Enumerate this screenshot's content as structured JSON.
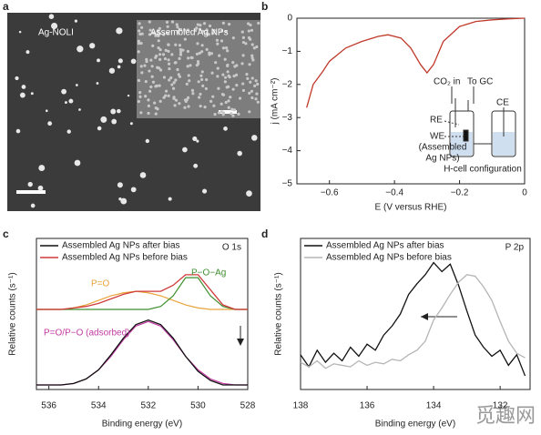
{
  "chart_data": [
    {
      "type": "image",
      "label": "a",
      "annotations": [
        "Ag-NOLI",
        "Assembled Ag NPs"
      ]
    },
    {
      "type": "line",
      "label": "b",
      "x_label": "E (V versus RHE)",
      "y_label": "j (mA cm⁻²)",
      "x": [
        -0.67,
        -0.65,
        -0.62,
        -0.6,
        -0.55,
        -0.5,
        -0.45,
        -0.42,
        -0.38,
        -0.35,
        -0.32,
        -0.3,
        -0.28,
        -0.25,
        -0.2,
        -0.15,
        -0.1,
        -0.05,
        0
      ],
      "series": [
        {
          "color": "#c0392b",
          "values": [
            -2.7,
            -2.0,
            -1.6,
            -1.3,
            -0.9,
            -0.7,
            -0.55,
            -0.5,
            -0.6,
            -0.9,
            -1.4,
            -1.65,
            -1.4,
            -0.7,
            -0.25,
            -0.1,
            -0.05,
            -0.02,
            0
          ]
        }
      ],
      "xlim": [
        -0.7,
        0
      ],
      "xticks": [
        {
          "value": -0.6,
          "label": "−0.6"
        },
        {
          "value": -0.4,
          "label": "−0.4"
        },
        {
          "value": -0.2,
          "label": "−0.2"
        },
        0
      ],
      "ylim": [
        -5,
        0
      ],
      "yticks": [
        0,
        {
          "value": -1,
          "label": "−1"
        },
        {
          "value": -2,
          "label": "−2"
        },
        {
          "value": -3,
          "label": "−3"
        },
        {
          "value": -4,
          "label": "−4"
        },
        {
          "value": -5,
          "label": "−5"
        }
      ],
      "annotations": [
        "CO₂ in",
        "To GC",
        "CE",
        "RE",
        "WE",
        "(Assembled",
        "Ag NPs)",
        "H-cell configuration"
      ]
    },
    {
      "type": "line",
      "label": "c",
      "x_label": "Binding energy (eV)",
      "y_label": "Relative counts (s⁻¹)",
      "legend": "upper left",
      "x": [
        536.5,
        536,
        535.5,
        535,
        534.5,
        534,
        533.5,
        533,
        532.5,
        532,
        531.5,
        531,
        530.5,
        530,
        529.5,
        529,
        528.5,
        528
      ],
      "series": [
        {
          "name": "Assembled Ag NPs after bias",
          "color": "#111111",
          "values": [
            0.3,
            0.3,
            0.3,
            0.4,
            0.7,
            1.3,
            2.3,
            3.4,
            4.3,
            4.6,
            4.3,
            3.4,
            2.2,
            1.2,
            0.6,
            0.3,
            0.3,
            0.3
          ]
        },
        {
          "name": "Assembled Ag NPs before bias",
          "color": "#d03a3a",
          "values": [
            5.3,
            5.3,
            5.3,
            5.4,
            5.5,
            5.7,
            6.0,
            6.3,
            6.5,
            6.5,
            6.5,
            6.9,
            7.6,
            7.6,
            6.6,
            5.6,
            5.3,
            5.3
          ]
        }
      ],
      "fits": [
        {
          "name": "P=O",
          "color": "#e8a33a",
          "values": [
            5.3,
            5.3,
            5.3,
            5.4,
            5.6,
            5.9,
            6.2,
            6.4,
            6.5,
            6.4,
            6.2,
            5.9,
            5.6,
            5.4,
            5.3,
            5.3,
            5.3,
            5.3
          ]
        },
        {
          "name": "P−O−Ag",
          "color": "#3f8f2f",
          "values": [
            5.3,
            5.3,
            5.3,
            5.3,
            5.3,
            5.3,
            5.3,
            5.3,
            5.3,
            5.3,
            5.5,
            6.2,
            7.4,
            7.4,
            6.2,
            5.5,
            5.3,
            5.3
          ]
        },
        {
          "name": "P=O/P−O (adsorbed)",
          "color": "#c23ba3",
          "values": [
            0.3,
            0.3,
            0.3,
            0.4,
            0.7,
            1.3,
            2.2,
            3.3,
            4.2,
            4.5,
            4.2,
            3.3,
            2.2,
            1.3,
            0.7,
            0.4,
            0.3,
            0.3
          ]
        }
      ],
      "xlim": [
        536.5,
        528
      ],
      "xticks": [
        536,
        534,
        532,
        530,
        528
      ],
      "ylim": [
        0,
        10
      ],
      "annotations": [
        "O 1s"
      ]
    },
    {
      "type": "line",
      "label": "d",
      "x_label": "Binding energy (eV)",
      "y_label": "Relative counts (s⁻¹)",
      "legend": "upper left",
      "x": [
        138,
        137.75,
        137.5,
        137.25,
        137,
        136.75,
        136.5,
        136.25,
        136,
        135.75,
        135.5,
        135.25,
        135,
        134.75,
        134.5,
        134.25,
        134,
        133.75,
        133.5,
        133.25,
        133,
        132.75,
        132.5,
        132.25,
        132,
        131.75,
        131.5,
        131.25
      ],
      "series": [
        {
          "name": "Assembled Ag NPs after bias",
          "color": "#111111",
          "values": [
            2.3,
            1.5,
            2.6,
            1.8,
            2.4,
            1.9,
            2.8,
            2.2,
            3.0,
            2.6,
            3.6,
            4.2,
            5.0,
            6.3,
            7.0,
            7.6,
            8.4,
            7.8,
            8.3,
            6.9,
            5.2,
            3.6,
            2.8,
            2.2,
            2.6,
            1.6,
            2.3,
            0.9
          ]
        },
        {
          "name": "Assembled Ag NPs before bias",
          "color": "#b5b5b5",
          "values": [
            1.8,
            1.5,
            1.9,
            1.4,
            1.7,
            1.6,
            1.5,
            1.9,
            1.6,
            1.8,
            1.7,
            2.0,
            1.9,
            2.3,
            2.6,
            3.2,
            4.6,
            5.4,
            6.3,
            7.1,
            7.6,
            7.5,
            6.8,
            5.9,
            4.5,
            3.2,
            2.4,
            2.1
          ]
        }
      ],
      "xlim": [
        138,
        131.1
      ],
      "xticks": [
        138,
        136,
        134,
        132
      ],
      "ylim": [
        0,
        10
      ],
      "annotations": [
        "P 2p"
      ]
    }
  ],
  "watermark": "觅趣网"
}
